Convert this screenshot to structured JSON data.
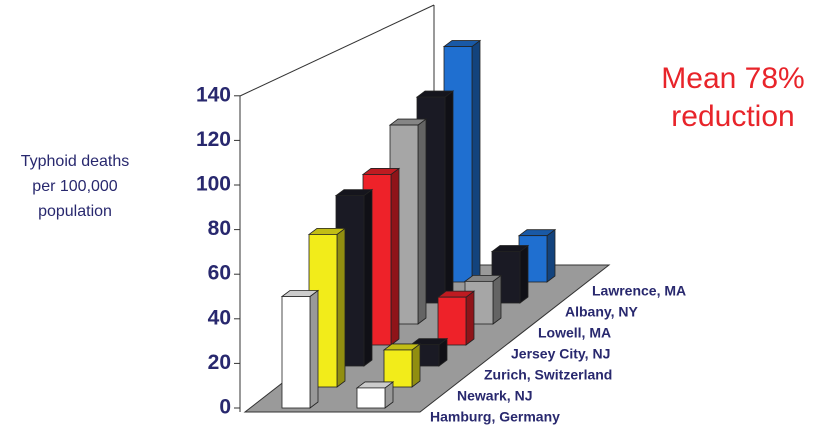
{
  "chart_data": {
    "type": "bar3d",
    "y_label_lines": [
      "Typhoid deaths",
      "per 100,000",
      "population"
    ],
    "annotation_lines": [
      "Mean 78%",
      "reduction"
    ],
    "categories": [
      null,
      null
    ],
    "series": [
      {
        "name": "Hamburg, Germany",
        "color": "#ffffff",
        "values": [
          50,
          9
        ]
      },
      {
        "name": "Newark, NJ",
        "color": "#f2ec1a",
        "values": [
          70,
          17
        ]
      },
      {
        "name": "Zurich, Switzerland",
        "color": "#1a1a24",
        "values": [
          80,
          10
        ]
      },
      {
        "name": "Jersey City, NJ",
        "color": "#ee2229",
        "values": [
          82,
          23
        ]
      },
      {
        "name": "Lowell, MA",
        "color": "#a6a6a6",
        "values": [
          98,
          21
        ]
      },
      {
        "name": "Albany, NY",
        "color": "#1a1a24",
        "values": [
          104,
          26
        ]
      },
      {
        "name": "Lawrence, MA",
        "color": "#1f6fd0",
        "values": [
          122,
          24
        ]
      }
    ],
    "ylim": [
      0,
      140
    ],
    "yticks": [
      0,
      20,
      40,
      60,
      80,
      100,
      120,
      140
    ]
  }
}
